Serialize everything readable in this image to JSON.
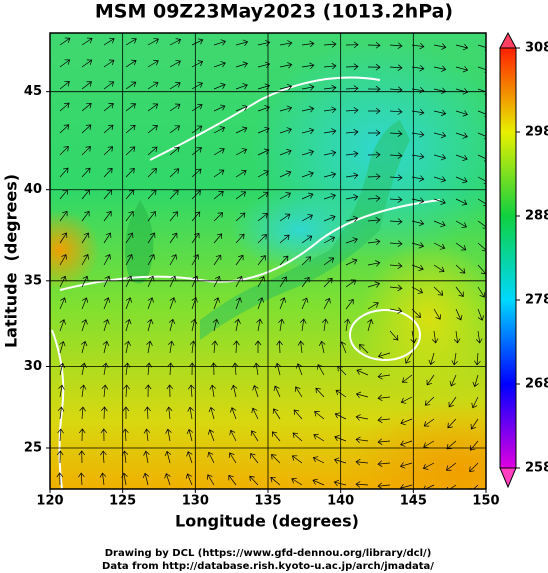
{
  "title": "MSM 09Z23May2023 (1013.2hPa)",
  "map": {
    "xlabel": "Longitude (degrees)",
    "ylabel": "Latitude  (degrees)",
    "projection": "mercator",
    "xlim": [
      120,
      150
    ],
    "ylim": [
      22.4,
      47.8
    ],
    "xticks": [
      120,
      125,
      130,
      135,
      140,
      145,
      150
    ],
    "yticks": [
      25,
      30,
      35,
      40,
      45
    ]
  },
  "colorbar": {
    "lim": [
      258,
      308
    ],
    "ticks": [
      258,
      268,
      278,
      288,
      298,
      308
    ],
    "colors": [
      "#e000e0",
      "#0000ff",
      "#00d8ff",
      "#10d040",
      "#e8f000",
      "#ff2000"
    ],
    "extend_colors": [
      "#ff40c0",
      "#ff4060"
    ]
  },
  "footer": [
    "Drawing by DCL (https://www.gfd-dennou.org/library/dcl/)",
    "Data from http://database.rish.kyoto-u.ac.jp/arch/jmadata/"
  ]
}
